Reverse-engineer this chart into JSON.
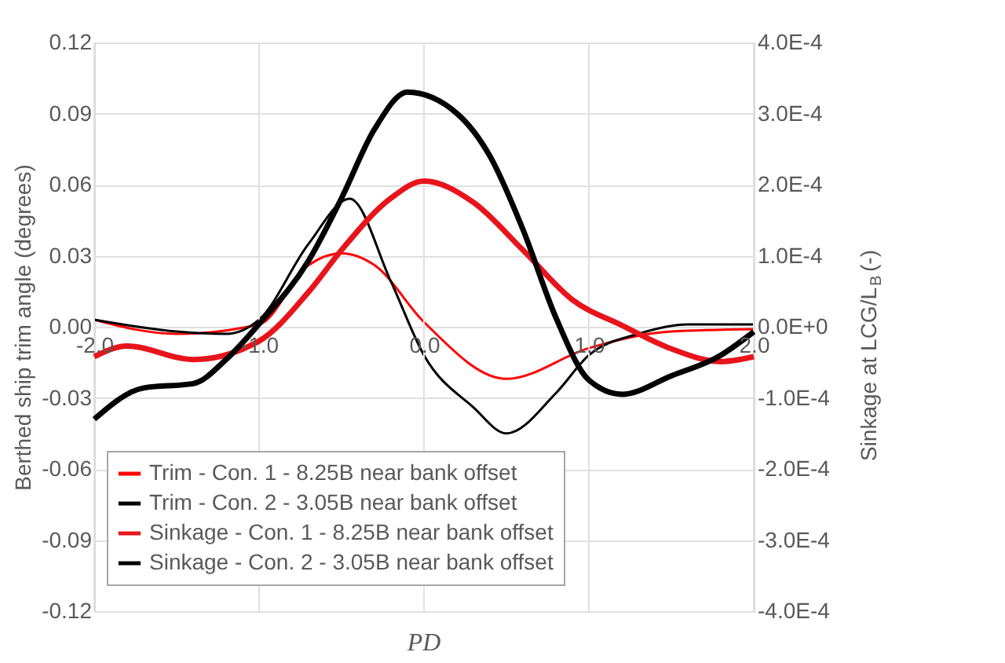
{
  "chart_data": {
    "type": "line",
    "xlabel": "PD",
    "ylabel": "Berthed ship trim angle (degrees)",
    "y2label": "Sinkage at LCG/L$_{B}$(-)",
    "xlim": [
      -2.0,
      2.0
    ],
    "xticks": [
      {
        "value": -2,
        "label": "-2.0"
      },
      {
        "value": -1,
        "label": "-1.0"
      },
      {
        "value": 0,
        "label": "0.0"
      },
      {
        "value": 1,
        "label": "1.0"
      },
      {
        "value": 2,
        "label": "2.0"
      }
    ],
    "ylim": [
      -0.12,
      0.12
    ],
    "yticks": [
      {
        "value": -0.12,
        "label": "-0.12"
      },
      {
        "value": -0.09,
        "label": "-0.09"
      },
      {
        "value": -0.06,
        "label": "-0.06"
      },
      {
        "value": -0.03,
        "label": "-0.03"
      },
      {
        "value": 0,
        "label": "0.00"
      },
      {
        "value": 0.03,
        "label": "0.03"
      },
      {
        "value": 0.06,
        "label": "0.06"
      },
      {
        "value": 0.09,
        "label": "0.09"
      },
      {
        "value": 0.12,
        "label": "0.12"
      }
    ],
    "y2lim": [
      -0.0004,
      0.0004
    ],
    "y2ticks": [
      {
        "value": -0.0004,
        "label": "-4.0E-4"
      },
      {
        "value": -0.0003,
        "label": "-3.0E-4"
      },
      {
        "value": -0.0002,
        "label": "-2.0E-4"
      },
      {
        "value": -0.0001,
        "label": "-1.0E-4"
      },
      {
        "value": 0,
        "label": "0.0E+0"
      },
      {
        "value": 0.0001,
        "label": "1.0E-4"
      },
      {
        "value": 0.0002,
        "label": "2.0E-4"
      },
      {
        "value": 0.0003,
        "label": "3.0E-4"
      },
      {
        "value": 0.0004,
        "label": "4.0E-4"
      }
    ],
    "grid": true,
    "legend": "bottom",
    "marker": "none",
    "line_style": "solid",
    "series": [
      {
        "name": "Trim - Con. 1 - 8.25B near bank offset",
        "color": "#ff0000",
        "x": [
          -2,
          -1.5,
          -1,
          -0.7,
          -0.5,
          -0.3,
          0,
          0.5,
          1,
          1.5,
          2
        ],
        "values": [
          0.003,
          -0.003,
          0.001,
          0.026,
          0.031,
          0.026,
          0.002,
          -0.022,
          -0.009,
          -0.002,
          -0.001
        ]
      },
      {
        "name": "Trim - Con. 2 - 3.05B near bank offset",
        "color": "#000000",
        "x": [
          -2,
          -1.5,
          -1.2,
          -1,
          -0.7,
          -0.45,
          -0.2,
          0,
          0.3,
          0.5,
          0.8,
          1,
          1.3,
          1.6,
          2
        ],
        "values": [
          0.003,
          -0.002,
          -0.003,
          0.003,
          0.035,
          0.054,
          0.019,
          -0.012,
          -0.034,
          -0.045,
          -0.028,
          -0.012,
          -0.003,
          0.001,
          0.001
        ]
      },
      {
        "name": "Sinkage - Con. 1 - 8.25B near bank offset",
        "color": "#e8141b",
        "axis": "y2",
        "x": [
          -2,
          -1.8,
          -1.4,
          -1,
          -0.7,
          -0.5,
          -0.2,
          0,
          0.3,
          0.6,
          0.9,
          1.2,
          1.5,
          1.8,
          2
        ],
        "values": [
          -4.2e-05,
          -2.7e-05,
          -4.6e-05,
          -2e-05,
          4.9e-05,
          0.000108,
          0.000181,
          0.000205,
          0.000175,
          0.000108,
          3.8e-05,
          2e-06,
          -3.1e-05,
          -4.9e-05,
          -4.2e-05
        ]
      },
      {
        "name": "Sinkage - Con. 2 - 3.05B near bank offset",
        "color": "#000000",
        "axis": "y2",
        "x": [
          -2,
          -1.7,
          -1.4,
          -1.2,
          -1,
          -0.7,
          -0.5,
          -0.3,
          -0.1,
          0.2,
          0.4,
          0.6,
          0.8,
          1,
          1.2,
          1.5,
          1.8,
          2
        ],
        "values": [
          -0.00013,
          -8.6e-05,
          -8e-05,
          -4.6e-05,
          4e-06,
          9.3e-05,
          0.000181,
          0.000278,
          0.00033,
          0.0003,
          0.00024,
          0.000137,
          1.3e-05,
          -7.5e-05,
          -9.5e-05,
          -6.9e-05,
          -4e-05,
          -7e-06
        ]
      }
    ]
  }
}
